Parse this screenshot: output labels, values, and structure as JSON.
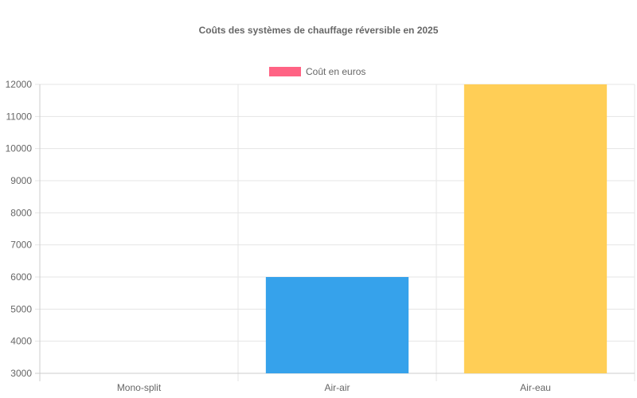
{
  "chart_data": {
    "type": "bar",
    "title": "Coûts des systèmes de chauffage réversible en 2025",
    "categories": [
      "Mono-split",
      "Air-air",
      "Air-eau"
    ],
    "series": [
      {
        "name": "Coût en euros",
        "values": [
          3000,
          6000,
          12000
        ],
        "colors": [
          "#ff6384",
          "#36a2eb",
          "#ffce56"
        ]
      }
    ],
    "ylim": [
      3000,
      12000
    ],
    "yticks": [
      "12000",
      "11000",
      "10000",
      "9000",
      "8000",
      "7000",
      "6000",
      "5000",
      "4000",
      "3000"
    ],
    "legend": {
      "position": "top",
      "swatch_color": "#ff6384"
    },
    "grid": true,
    "xlabel": "",
    "ylabel": ""
  }
}
